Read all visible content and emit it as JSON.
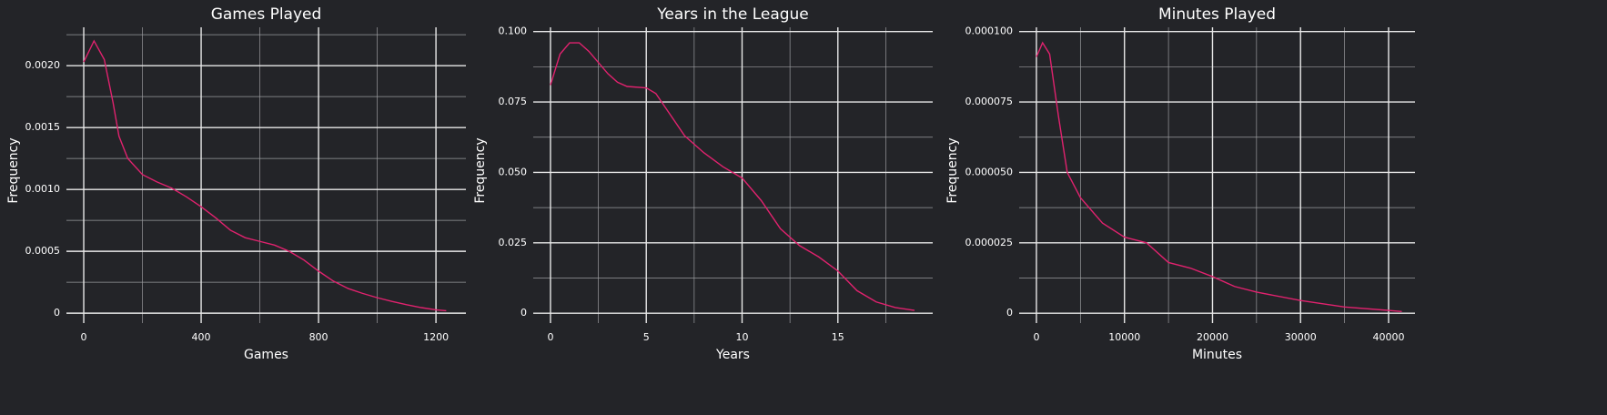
{
  "chart_data": [
    {
      "type": "line",
      "title": "Games Played",
      "xlabel": "Games",
      "ylabel": "Frequency",
      "color": "#e0226e",
      "grid": true,
      "x": [
        0,
        35,
        70,
        100,
        120,
        150,
        200,
        250,
        300,
        350,
        400,
        450,
        500,
        550,
        600,
        650,
        700,
        750,
        800,
        850,
        900,
        950,
        1000,
        1050,
        1100,
        1150,
        1200,
        1235
      ],
      "values": [
        0.00203,
        0.0022,
        0.00205,
        0.0017,
        0.00143,
        0.00125,
        0.00112,
        0.00106,
        0.00101,
        0.00094,
        0.00086,
        0.00077,
        0.00067,
        0.00061,
        0.00058,
        0.00055,
        0.0005,
        0.00043,
        0.00034,
        0.00026,
        0.0002,
        0.00016,
        0.000125,
        9.5e-05,
        6.8e-05,
        4.5e-05,
        2.7e-05,
        2e-05
      ],
      "xlim": [
        -59,
        1302
      ],
      "ylim": [
        -8e-05,
        0.00231
      ],
      "xticks": [
        0,
        400,
        800,
        1200
      ],
      "minor_xticks": [
        200,
        600,
        1000
      ],
      "yticks": [
        0,
        0.0005,
        {
          "value": 0.001,
          "label": "0.0010"
        },
        0.0015,
        {
          "value": 0.002,
          "label": "0.0020"
        }
      ],
      "minor_yticks": [
        0.00025,
        0.00075,
        0.00125,
        0.00175,
        0.00225
      ]
    },
    {
      "type": "line",
      "title": "Years in the League",
      "xlabel": "Years",
      "ylabel": "Frequency",
      "color": "#e0226e",
      "grid": true,
      "x": [
        0,
        0.5,
        1,
        1.5,
        2,
        2.5,
        3,
        3.5,
        4,
        5,
        5.5,
        6,
        7,
        8,
        9,
        10,
        11,
        12,
        13,
        14,
        15,
        16,
        17,
        18,
        19
      ],
      "values": [
        0.081,
        0.092,
        0.096,
        0.096,
        0.093,
        0.089,
        0.085,
        0.082,
        0.0805,
        0.08,
        0.078,
        0.073,
        0.063,
        0.057,
        0.052,
        0.048,
        0.04,
        0.03,
        0.024,
        0.02,
        0.015,
        0.008,
        0.004,
        0.002,
        0.001
      ],
      "xlim": [
        -0.9,
        19.95
      ],
      "ylim": [
        -0.0035,
        0.1015
      ],
      "xticks": [
        0,
        5,
        10,
        15
      ],
      "minor_xticks": [
        2.5,
        7.5,
        12.5,
        17.5
      ],
      "yticks": [
        0,
        0.025,
        {
          "value": 0.05,
          "label": "0.050"
        },
        0.075,
        {
          "value": 0.1,
          "label": "0.100"
        }
      ],
      "minor_yticks": [
        0.0125,
        0.0375,
        0.0625,
        0.0875
      ]
    },
    {
      "type": "line",
      "title": "Minutes Played",
      "xlabel": "Minutes",
      "ylabel": "Frequency",
      "color": "#e0226e",
      "grid": true,
      "x": [
        0,
        700,
        1500,
        2500,
        3500,
        5000,
        7500,
        10000,
        12500,
        15000,
        17500,
        20000,
        22500,
        25000,
        30000,
        35000,
        40000,
        41500
      ],
      "values": [
        9.1e-05,
        9.6e-05,
        9.2e-05,
        7e-05,
        5e-05,
        4.1e-05,
        3.2e-05,
        2.7e-05,
        2.5e-05,
        1.8e-05,
        1.6e-05,
        1.3e-05,
        9.5e-06,
        7.5e-06,
        4.5e-06,
        2.2e-06,
        1e-06,
        6e-07
      ],
      "xlim": [
        -1960,
        43000
      ],
      "ylim": [
        -3.5e-06,
        0.0001015
      ],
      "xticks": [
        0,
        10000,
        20000,
        30000,
        40000
      ],
      "minor_xticks": [
        5000,
        15000,
        25000,
        35000
      ],
      "yticks": [
        0,
        2.5e-05,
        {
          "value": 5e-05,
          "label": "0.000050"
        },
        7.5e-05,
        {
          "value": 0.0001,
          "label": "0.000100"
        }
      ],
      "minor_yticks": [
        1.25e-05,
        3.75e-05,
        6.25e-05,
        8.75e-05
      ]
    }
  ]
}
